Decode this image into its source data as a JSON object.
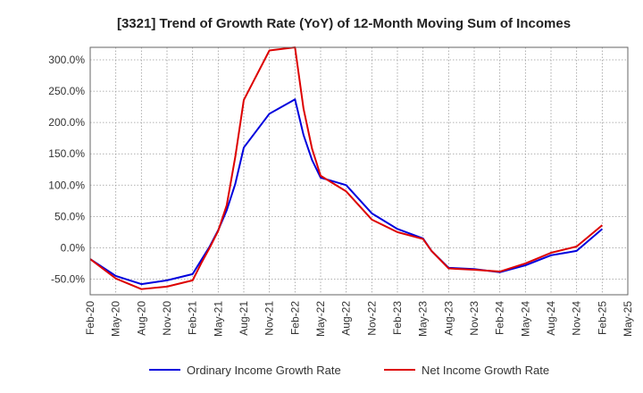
{
  "chart_data": {
    "type": "line",
    "title": "[3321]  Trend of Growth Rate (YoY) of 12-Month Moving Sum of Incomes",
    "xlabel": "",
    "ylabel": "",
    "ylim": [
      -75,
      320
    ],
    "y_ticks": [
      "300.0%",
      "250.0%",
      "200.0%",
      "150.0%",
      "100.0%",
      "50.0%",
      "0.0%",
      "-50.0%"
    ],
    "y_tick_values": [
      300,
      250,
      200,
      150,
      100,
      50,
      0,
      -50
    ],
    "x_ticks": [
      "Feb-20",
      "May-20",
      "Aug-20",
      "Nov-20",
      "Feb-21",
      "May-21",
      "Aug-21",
      "Nov-21",
      "Feb-22",
      "May-22",
      "Aug-22",
      "Nov-22",
      "Feb-23",
      "May-23",
      "Aug-23",
      "Nov-23",
      "Feb-24",
      "May-24",
      "Aug-24",
      "Nov-24",
      "Feb-25",
      "May-25"
    ],
    "x": [
      "Feb-20",
      "May-20",
      "Aug-20",
      "Nov-20",
      "Feb-21",
      "Mar-21",
      "Apr-21",
      "May-21",
      "Jun-21",
      "Jul-21",
      "Aug-21",
      "Nov-21",
      "Feb-22",
      "Mar-22",
      "Apr-22",
      "May-22",
      "Aug-22",
      "Nov-22",
      "Feb-23",
      "May-23",
      "Jun-23",
      "Aug-23",
      "Nov-23",
      "Feb-24",
      "May-24",
      "Aug-24",
      "Nov-24",
      "Feb-25"
    ],
    "grid": true,
    "legend_position": "bottom",
    "series": [
      {
        "name": "Ordinary Income Growth Rate",
        "color": "#0000dd",
        "values": [
          -18,
          -45,
          -58,
          -52,
          -42,
          -20,
          2,
          28,
          60,
          102,
          160,
          214,
          237,
          180,
          140,
          112,
          100,
          55,
          30,
          15,
          -5,
          -32,
          -34,
          -39,
          -28,
          -12,
          -5,
          30
        ]
      },
      {
        "name": "Net Income Growth Rate",
        "color": "#dd0000",
        "values": [
          -18,
          -49,
          -66,
          -62,
          -52,
          -25,
          0,
          27,
          68,
          145,
          236,
          315,
          320,
          222,
          158,
          115,
          90,
          45,
          25,
          14,
          -5,
          -33,
          -35,
          -38,
          -25,
          -8,
          2,
          36
        ]
      }
    ]
  }
}
